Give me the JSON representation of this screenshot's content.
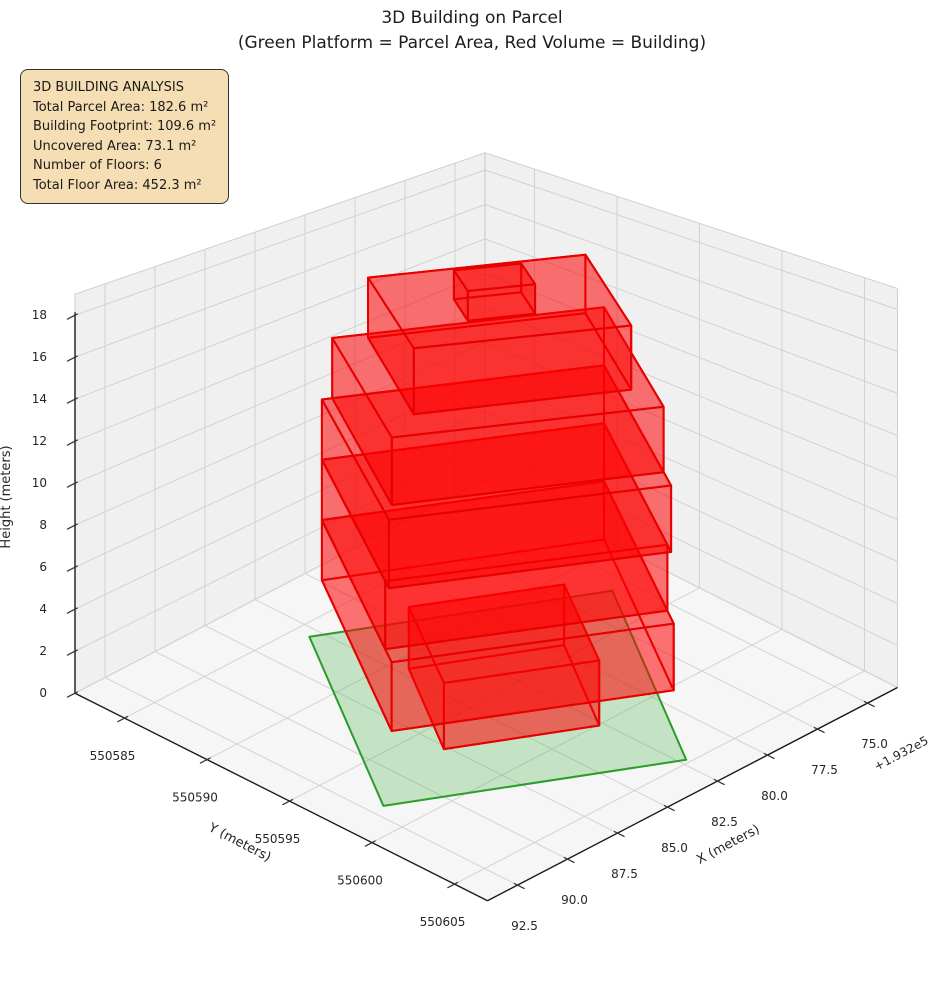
{
  "title": {
    "line1": "3D Building on Parcel",
    "line2": "(Green Platform = Parcel Area, Red Volume = Building)"
  },
  "info_box": {
    "heading": "3D BUILDING ANALYSIS",
    "lines": [
      "Total Parcel Area: 182.6 m²",
      "Building Footprint: 109.6 m²",
      "Uncovered Area: 73.1 m²",
      "Number of Floors: 6",
      "Total Floor Area: 452.3 m²"
    ]
  },
  "chart_data": {
    "type": "3d-building-massing",
    "title": "3D Building on Parcel (Green Platform = Parcel Area, Red Volume = Building)",
    "legend_note": "Green Platform = Parcel Area, Red Volume = Building",
    "axes": {
      "x": {
        "label": "X (meters)",
        "offset_text": "+1.932e5",
        "ticks": [
          193275.0,
          193277.5,
          193280.0,
          193282.5,
          193285.0,
          193287.5,
          193290.0,
          193292.5
        ],
        "tick_labels": [
          "75.0",
          "77.5",
          "80.0",
          "82.5",
          "85.0",
          "87.5",
          "90.0",
          "92.5"
        ],
        "range": [
          193273.5,
          193294.0
        ]
      },
      "y": {
        "label": "Y (meters)",
        "ticks": [
          550585,
          550590,
          550595,
          550600,
          550605
        ],
        "tick_labels": [
          "550585",
          "550590",
          "550595",
          "550600",
          "550605"
        ],
        "range": [
          550582.0,
          550607.0
        ]
      },
      "z": {
        "label": "Height (meters)",
        "ticks": [
          0,
          2,
          4,
          6,
          8,
          10,
          12,
          14,
          16,
          18
        ],
        "tick_labels": [
          "0",
          "2",
          "4",
          "6",
          "8",
          "10",
          "12",
          "14",
          "16",
          "18"
        ],
        "range": [
          0,
          19.0
        ]
      }
    },
    "parcel": {
      "area_m2": 182.6,
      "origin": [
        193275.8,
        550592.5
      ],
      "e1": [
        0.829,
        -0.564
      ],
      "e2": [
        0.464,
        0.885
      ],
      "size": [
        11.7,
        13.9
      ],
      "face_color": "rgba(70,175,70,0.28)",
      "edge_color": "#2a9d2a"
    },
    "building": {
      "footprint_m2": 109.6,
      "num_floors": 6,
      "total_floor_area_m2": 452.3,
      "uncovered_area_m2": 73.1,
      "floor_height_m": 3,
      "face_color": "rgba(255,0,0,0.32)",
      "edge_color": "#e60000",
      "floors": [
        {
          "name": "floor-1-ground",
          "z": [
            0,
            3
          ],
          "u": [
            2.6,
            8.6
          ],
          "v": [
            3.6,
            10.2
          ]
        },
        {
          "name": "floor-2",
          "z": [
            3,
            6
          ],
          "u": [
            0.4,
            11.3
          ],
          "v": [
            0.4,
            13.5
          ]
        },
        {
          "name": "floor-3",
          "z": [
            6,
            9
          ],
          "u": [
            0.4,
            11.3
          ],
          "v": [
            0.4,
            12.3
          ]
        },
        {
          "name": "floor-4",
          "z": [
            9,
            12
          ],
          "u": [
            0.4,
            11.3
          ],
          "v": [
            0.4,
            13.0
          ]
        },
        {
          "name": "floor-5",
          "z": [
            12,
            15
          ],
          "u": [
            0.4,
            10.9
          ],
          "v": [
            0.4,
            11.6
          ]
        },
        {
          "name": "floor-6",
          "z": [
            15,
            18
          ],
          "u": [
            1.2,
            9.6
          ],
          "v": [
            0.8,
            9.4
          ]
        },
        {
          "name": "roof-penthouse",
          "z": [
            18,
            19.4
          ],
          "u": [
            4.4,
            7.0
          ],
          "v": [
            4.3,
            6.9
          ]
        }
      ]
    },
    "style": {
      "pane_wall": "#f0f0f0",
      "pane_floor": "#f6f6f6",
      "grid": "#d2d2d2",
      "pane_edge": "#cfcfcf",
      "axis_line": "#1a1a1a",
      "tick_color": "#333333",
      "label_color": "#262626"
    }
  }
}
